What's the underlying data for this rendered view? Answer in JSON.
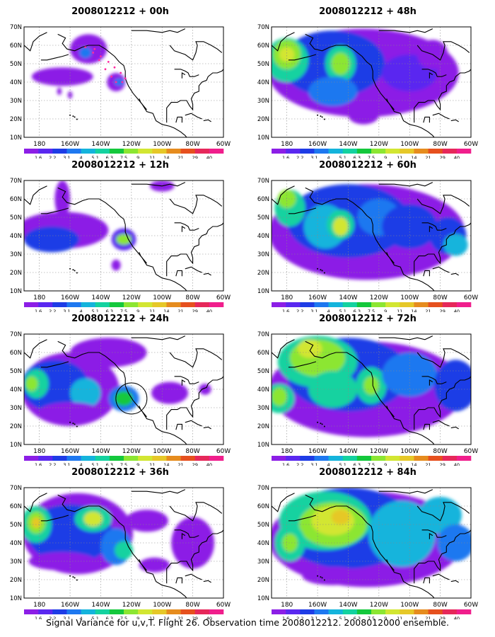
{
  "panels": [
    {
      "title": "2008012212 + 00h",
      "stage": 0
    },
    {
      "title": "2008012212 + 48h",
      "stage": 4
    },
    {
      "title": "2008012212 + 12h",
      "stage": 1
    },
    {
      "title": "2008012212 + 60h",
      "stage": 5
    },
    {
      "title": "2008012212 + 24h",
      "stage": 2
    },
    {
      "title": "2008012212 + 72h",
      "stage": 6
    },
    {
      "title": "2008012212 + 36h",
      "stage": 3
    },
    {
      "title": "2008012212 + 84h",
      "stage": 7
    }
  ],
  "axes": {
    "lat_labels": [
      "70N",
      "60N",
      "50N",
      "40N",
      "30N",
      "20N",
      "10N"
    ],
    "lon_labels": [
      "180",
      "160W",
      "140W",
      "120W",
      "100W",
      "80W",
      "60W"
    ]
  },
  "colorbar": {
    "labels": [
      "1.6",
      "2.2",
      "3.1",
      "4",
      "5.1",
      "6.3",
      "7.5",
      "9",
      "11",
      "14",
      "21",
      "29",
      "40"
    ],
    "colors": [
      "#8c1ee6",
      "#5a28f0",
      "#1e3ce6",
      "#1e78f0",
      "#14b4dc",
      "#14d2a0",
      "#14c83c",
      "#8ce632",
      "#d2e632",
      "#e6c828",
      "#e68c1e",
      "#e6501e",
      "#e6285a",
      "#f01e8c"
    ]
  },
  "annotations": {
    "flight_track_color": "#ff2aa0"
  },
  "caption": "Signal Variance for u,v,T. Flight 26. Observation time 2008012212. 2008012000 ensemble."
}
